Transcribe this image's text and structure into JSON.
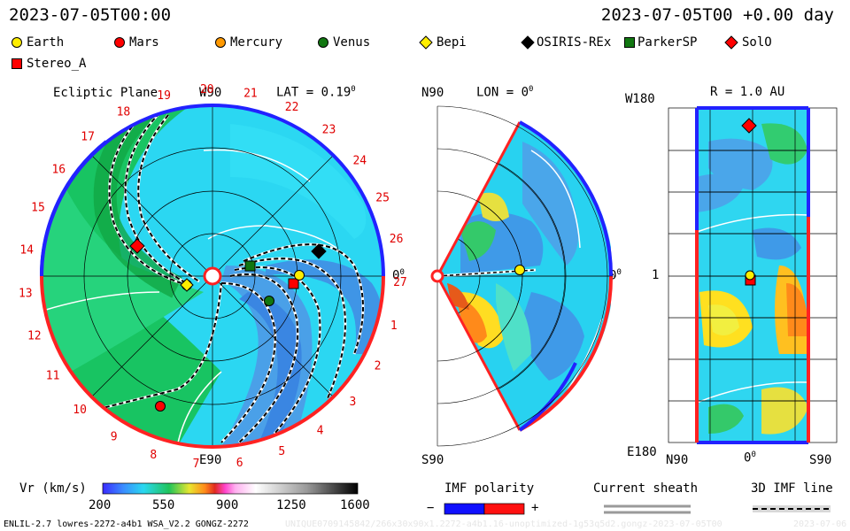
{
  "header": {
    "datetime_left": "2023-07-05T00:00",
    "datetime_right": "2023-07-05T00 +0.00 day"
  },
  "legend": [
    {
      "label": "Earth",
      "color": "#ffee00",
      "shape": "circle"
    },
    {
      "label": "Mars",
      "color": "#ff0000",
      "shape": "circle"
    },
    {
      "label": "Mercury",
      "color": "#ff9900",
      "shape": "circle"
    },
    {
      "label": "Venus",
      "color": "#117711",
      "shape": "circle"
    },
    {
      "label": "Bepi",
      "color": "#ffee00",
      "shape": "diamond"
    },
    {
      "label": "OSIRIS-REx",
      "color": "#000000",
      "shape": "diamond"
    },
    {
      "label": "ParkerSP",
      "color": "#117711",
      "shape": "square"
    },
    {
      "label": "SolO",
      "color": "#ff0000",
      "shape": "diamond"
    },
    {
      "label": "Stereo_A",
      "color": "#ff0000",
      "shape": "square"
    }
  ],
  "ecliptic": {
    "title": "Ecliptic Plane",
    "lat_label": "LAT = 0.19",
    "lat_sup": "0",
    "top_label": "W90",
    "bottom_label": "E90",
    "right_label": "0",
    "right_sup": "0",
    "rotation_numbers": [
      "19",
      "20",
      "21",
      "22",
      "23",
      "24",
      "25",
      "26",
      "27",
      "1",
      "2",
      "3",
      "4",
      "5",
      "6",
      "7",
      "8",
      "9",
      "10",
      "11",
      "12",
      "13",
      "14",
      "15",
      "16",
      "17",
      "18"
    ]
  },
  "meridional": {
    "lon_label": "LON = 0",
    "lon_sup": "0",
    "top_label": "N90",
    "bottom_label": "S90",
    "right_label": "0",
    "right_sup": "0"
  },
  "radial": {
    "r_label": "R = 1.0 AU",
    "top_label": "W180",
    "bottom_label": "E180",
    "left_label": "1",
    "x_labels": [
      "N90",
      "0",
      "S90"
    ],
    "x_sup": "0"
  },
  "colorbar": {
    "label": "Vr (km/s)",
    "ticks": [
      "200",
      "550",
      "900",
      "1250",
      "1600"
    ]
  },
  "imf": {
    "label": "IMF polarity",
    "minus": "−",
    "plus": "+"
  },
  "sheath": {
    "label": "Current sheath"
  },
  "imf3d": {
    "label": "3D IMF line"
  },
  "footer": {
    "left": "ENLIL-2.7 lowres-2272-a4b1 WSA_V2.2 GONGZ-2272",
    "mid": "UNIQUE0709145842/266x30x90x1.2272-a4b1.16-unoptimized-1g53q5d2.gongz-2023-07-05T00",
    "right": "2023-07-06"
  }
}
